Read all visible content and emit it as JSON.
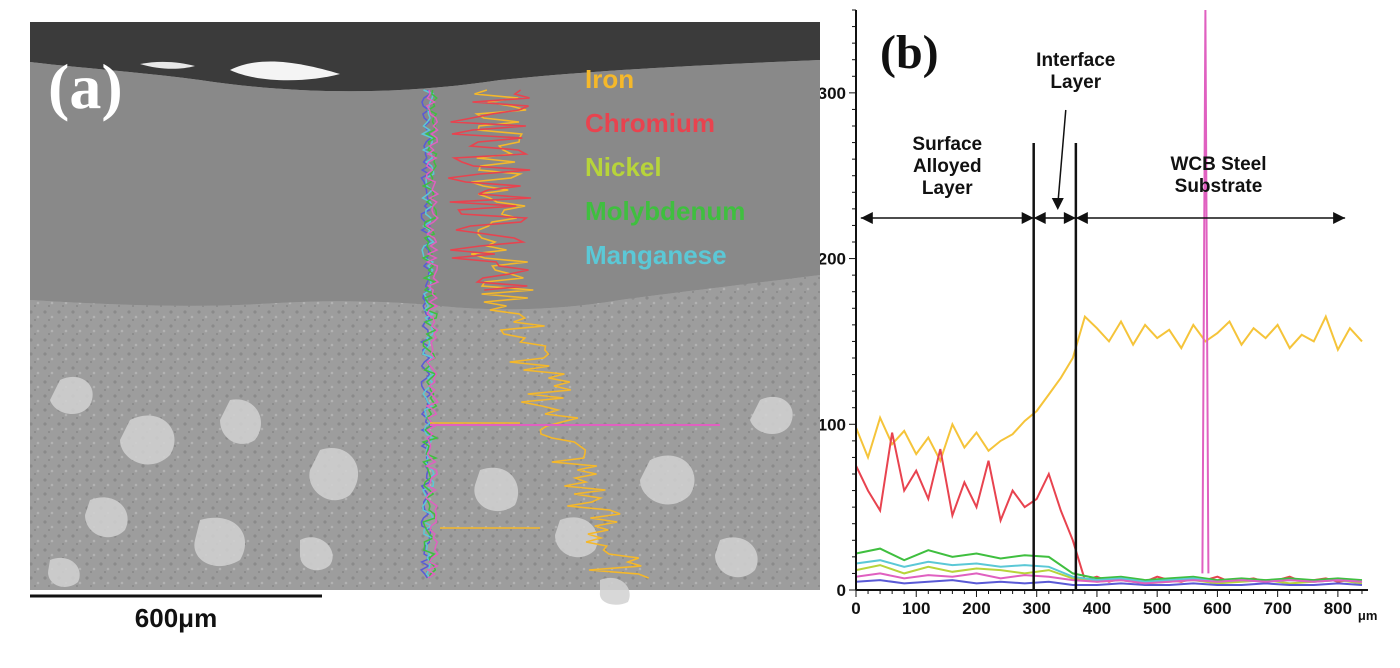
{
  "panel_a": {
    "label": "(a)",
    "scale_bar_label": "600μm",
    "legend": [
      {
        "name": "Iron",
        "color": "#f5b82a"
      },
      {
        "name": "Chromium",
        "color": "#e8434f"
      },
      {
        "name": "Nickel",
        "color": "#b7d43a"
      },
      {
        "name": "Molybdenum",
        "color": "#3fbf3f"
      },
      {
        "name": "Manganese",
        "color": "#5bc8d6"
      }
    ]
  },
  "chart_data": {
    "type": "line",
    "panel_label": "(b)",
    "title": "",
    "xlabel": "",
    "x_unit": "μm",
    "ylabel": "",
    "xlim": [
      0,
      850
    ],
    "ylim": [
      0,
      350
    ],
    "x_ticks": [
      0,
      100,
      200,
      300,
      400,
      500,
      600,
      700,
      800
    ],
    "y_ticks": [
      0,
      100,
      200,
      300
    ],
    "grid": false,
    "boundaries_x": [
      295,
      365
    ],
    "regions": [
      {
        "label_lines": [
          "Surface",
          "Alloyed",
          "Layer"
        ]
      },
      {
        "label_lines": [
          "Interface",
          "Layer"
        ]
      },
      {
        "label_lines": [
          "WCB Steel",
          "Substrate"
        ]
      }
    ],
    "series": [
      {
        "color": "#f5c43a",
        "x": [
          0,
          20,
          40,
          60,
          80,
          100,
          120,
          140,
          160,
          180,
          200,
          220,
          240,
          260,
          280,
          300,
          320,
          340,
          360,
          380,
          400,
          420,
          440,
          460,
          480,
          500,
          520,
          540,
          560,
          580,
          600,
          620,
          640,
          660,
          680,
          700,
          720,
          740,
          760,
          780,
          800,
          820,
          840
        ],
        "values": [
          98,
          80,
          104,
          88,
          96,
          82,
          92,
          78,
          100,
          86,
          95,
          84,
          90,
          94,
          102,
          108,
          118,
          128,
          140,
          165,
          158,
          150,
          162,
          148,
          160,
          152,
          157,
          146,
          160,
          150,
          155,
          162,
          148,
          158,
          152,
          160,
          146,
          154,
          150,
          165,
          145,
          158,
          150
        ]
      },
      {
        "color": "#e8434f",
        "x": [
          0,
          20,
          40,
          60,
          80,
          100,
          120,
          140,
          160,
          180,
          200,
          220,
          240,
          260,
          280,
          300,
          320,
          340,
          360,
          380,
          400,
          420,
          440,
          460,
          480,
          500,
          520,
          540,
          560,
          580,
          600,
          620,
          640,
          660,
          680,
          700,
          720,
          740,
          760,
          780,
          800,
          820,
          840
        ],
        "values": [
          75,
          60,
          48,
          95,
          60,
          72,
          55,
          85,
          45,
          65,
          50,
          78,
          42,
          60,
          50,
          55,
          70,
          48,
          30,
          6,
          8,
          5,
          7,
          6,
          5,
          8,
          6,
          5,
          7,
          6,
          8,
          5,
          6,
          7,
          5,
          6,
          8,
          5,
          6,
          7,
          5,
          6,
          5
        ]
      },
      {
        "color": "#b7d43a",
        "x": [
          0,
          40,
          80,
          120,
          160,
          200,
          240,
          280,
          320,
          360,
          400,
          440,
          480,
          520,
          560,
          600,
          640,
          680,
          720,
          760,
          800,
          840
        ],
        "values": [
          12,
          15,
          10,
          14,
          11,
          13,
          12,
          10,
          12,
          7,
          5,
          6,
          4,
          5,
          6,
          4,
          5,
          6,
          4,
          5,
          6,
          4
        ]
      },
      {
        "color": "#3fbf3f",
        "x": [
          0,
          40,
          80,
          120,
          160,
          200,
          240,
          280,
          320,
          360,
          400,
          440,
          480,
          520,
          560,
          600,
          640,
          680,
          720,
          760,
          800,
          840
        ],
        "values": [
          22,
          25,
          18,
          24,
          20,
          22,
          19,
          21,
          20,
          10,
          7,
          8,
          6,
          7,
          8,
          6,
          7,
          6,
          7,
          6,
          7,
          6
        ]
      },
      {
        "color": "#5bc8d6",
        "x": [
          0,
          40,
          80,
          120,
          160,
          200,
          240,
          280,
          320,
          360,
          400,
          440,
          480,
          520,
          560,
          600,
          640,
          680,
          720,
          760,
          800,
          840
        ],
        "values": [
          16,
          18,
          14,
          17,
          15,
          16,
          14,
          15,
          14,
          8,
          6,
          7,
          5,
          6,
          7,
          5,
          6,
          5,
          6,
          5,
          6,
          5
        ]
      },
      {
        "color": "#5a5ad6",
        "x": [
          0,
          40,
          80,
          120,
          160,
          200,
          240,
          280,
          320,
          360,
          400,
          440,
          480,
          520,
          560,
          600,
          640,
          680,
          720,
          760,
          800,
          840
        ],
        "values": [
          5,
          6,
          4,
          5,
          6,
          4,
          5,
          4,
          5,
          3,
          3,
          4,
          3,
          3,
          4,
          3,
          3,
          4,
          3,
          3,
          4,
          3
        ]
      },
      {
        "color": "#e060c0",
        "x": [
          0,
          40,
          80,
          120,
          160,
          200,
          240,
          280,
          320,
          360,
          400,
          440,
          480,
          520,
          560,
          600,
          640,
          680,
          720,
          760,
          800,
          840
        ],
        "values": [
          8,
          10,
          7,
          9,
          8,
          10,
          7,
          9,
          8,
          6,
          5,
          6,
          4,
          5,
          6,
          5,
          6,
          5,
          6,
          5,
          6,
          5
        ]
      },
      {
        "color": "#e060c0",
        "x": [
          575,
          580,
          585
        ],
        "values": [
          10,
          350,
          10
        ]
      }
    ]
  }
}
